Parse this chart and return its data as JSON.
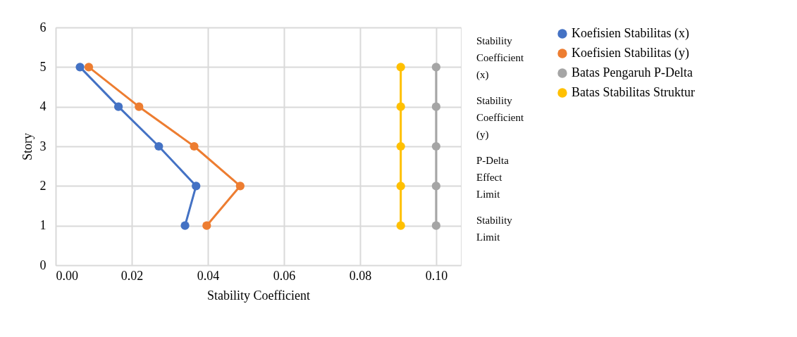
{
  "chart_data": {
    "type": "line",
    "xlabel": "Stability Coefficient",
    "ylabel": "Story",
    "series": [
      {
        "name": "Koefisien Stabilitas (x)",
        "color": "#4472c4",
        "x": [
          0.0064,
          0.0165,
          0.0271,
          0.0369,
          0.034
        ],
        "values": [
          5,
          4,
          3,
          2,
          1
        ]
      },
      {
        "name": "Koefisien Stabilitas (y)",
        "color": "#ed7d31",
        "x": [
          0.0087,
          0.0219,
          0.0364,
          0.0485,
          0.0397
        ],
        "values": [
          5,
          4,
          3,
          2,
          1
        ]
      },
      {
        "name": "Batas Pengaruh P-Delta",
        "color": "#a5a5a5",
        "x": [
          0.1,
          0.1,
          0.1,
          0.1,
          0.1
        ],
        "values": [
          5,
          4,
          3,
          2,
          1
        ]
      },
      {
        "name": "Batas Stabilitas Struktur",
        "color": "#ffc000",
        "x": [
          0.0907,
          0.0907,
          0.0907,
          0.0907,
          0.0907
        ],
        "values": [
          5,
          4,
          3,
          2,
          1
        ]
      }
    ],
    "xlim": [
      0,
      0.1065
    ],
    "ylim": [
      0,
      6
    ],
    "xticks": [
      {
        "value": 0,
        "label": "0.00"
      },
      {
        "value": 0.02,
        "label": "0.02"
      },
      {
        "value": 0.04,
        "label": "0.04"
      },
      {
        "value": 0.06,
        "label": "0.06"
      },
      {
        "value": 0.08,
        "label": "0.08"
      },
      {
        "value": 0.1,
        "label": "0.10"
      }
    ],
    "yticks": [
      0,
      1,
      2,
      3,
      4,
      5,
      6
    ],
    "annotations": [
      "Stability Coefficient (x)",
      "Stability Coefficient (y)",
      "P-Delta Effect Limit",
      "Stability Limit"
    ],
    "grid": true,
    "legend": "right",
    "marker": "circle",
    "line_style": "solid"
  }
}
